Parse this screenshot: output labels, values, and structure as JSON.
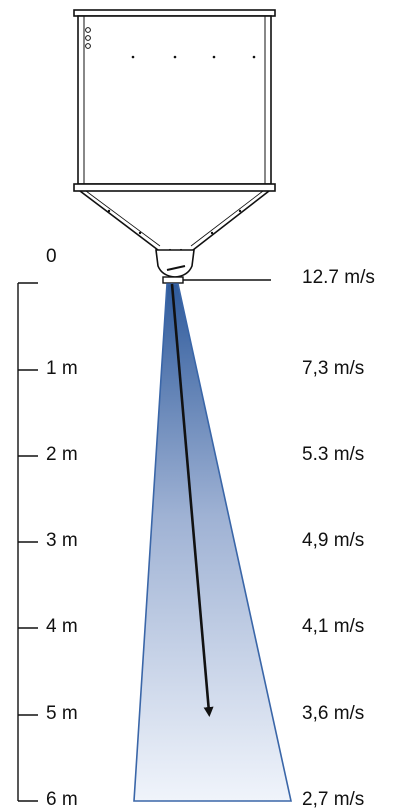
{
  "scale": {
    "distance_labels": [
      "0",
      "1 m",
      "2 m",
      "3 m",
      "4 m",
      "5 m",
      "6 m"
    ],
    "velocity_labels": [
      "12.7 m/s",
      "7,3 m/s",
      "5.3 m/s",
      "4,9 m/s",
      "4,1 m/s",
      "3,6 m/s",
      "2,7 m/s"
    ]
  },
  "colors": {
    "outline": "#111111",
    "cone_stroke": "#3a66a8",
    "cone_top": "#2f5b9c",
    "cone_bottom": "#f0f4fb",
    "arrow": "#111111"
  }
}
